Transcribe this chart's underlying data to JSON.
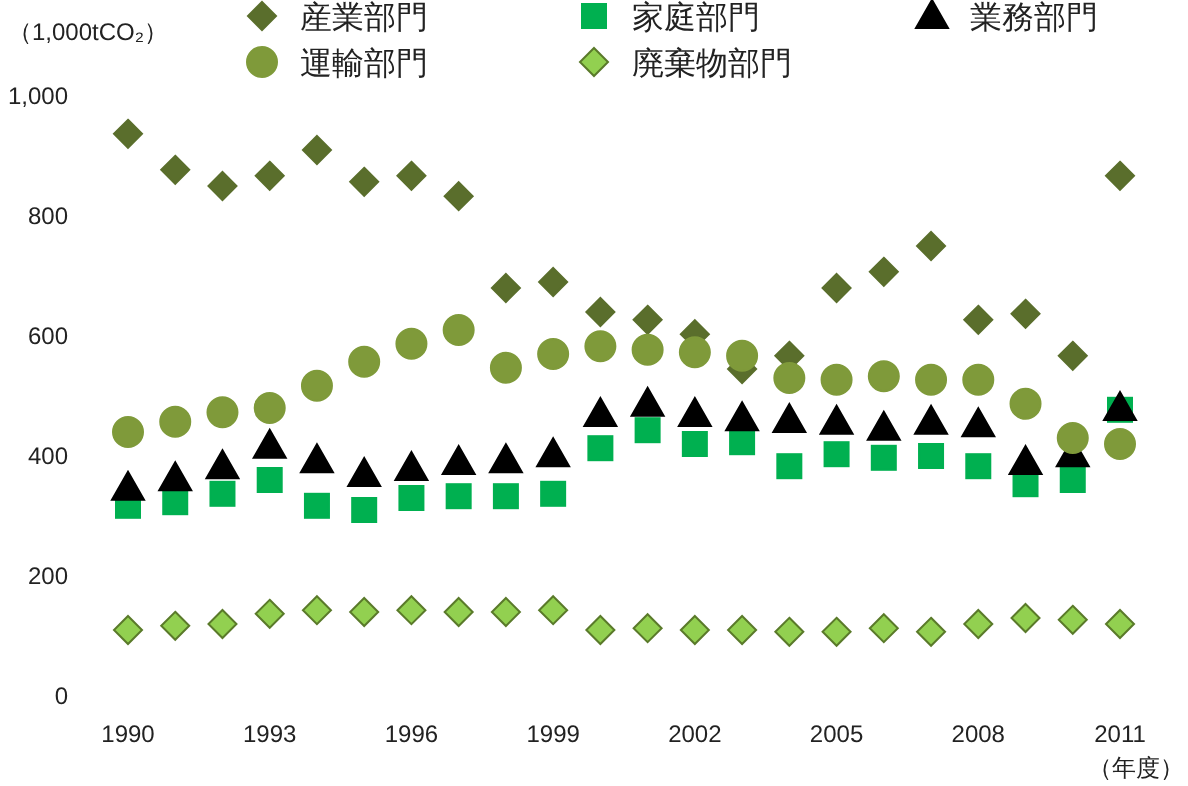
{
  "chart_data": {
    "type": "scatter",
    "ylabel": "（1,000tCO₂）",
    "xlabel": "（年度）",
    "legend": "top",
    "grid": false,
    "x": [
      1990,
      1991,
      1992,
      1993,
      1994,
      1995,
      1996,
      1997,
      1998,
      1999,
      2000,
      2001,
      2002,
      2003,
      2004,
      2005,
      2006,
      2007,
      2008,
      2009,
      2010,
      2011
    ],
    "xlim": [
      1990,
      2011
    ],
    "xticks": [
      1990,
      1993,
      1996,
      1999,
      2002,
      2005,
      2008,
      2011
    ],
    "ylim": [
      0,
      1000
    ],
    "yticks": [
      0,
      200,
      400,
      600,
      800,
      {
        "value": 1000,
        "label": "1,000"
      }
    ],
    "series": [
      {
        "name": "産業部門",
        "color": "#5a6e2c",
        "marker": "diamond",
        "values": [
          937,
          877,
          850,
          867,
          910,
          857,
          867,
          833,
          680,
          690,
          640,
          627,
          603,
          545,
          567,
          680,
          707,
          750,
          627,
          637,
          567,
          867
        ]
      },
      {
        "name": "家庭部門",
        "color": "#00b050",
        "marker": "square",
        "values": [
          317,
          323,
          337,
          360,
          317,
          310,
          330,
          333,
          333,
          337,
          413,
          443,
          420,
          423,
          383,
          403,
          397,
          400,
          383,
          353,
          360,
          477
        ]
      },
      {
        "name": "業務部門",
        "color": "#000000",
        "marker": "triangle",
        "values": [
          347,
          363,
          383,
          417,
          393,
          370,
          380,
          390,
          393,
          403,
          470,
          487,
          470,
          463,
          460,
          457,
          447,
          457,
          453,
          390,
          403,
          480
        ]
      },
      {
        "name": "運輸部門",
        "color": "#7f9a3a",
        "marker": "circle",
        "values": [
          440,
          457,
          473,
          480,
          517,
          557,
          587,
          610,
          547,
          570,
          583,
          577,
          573,
          567,
          530,
          527,
          533,
          527,
          527,
          487,
          430,
          420
        ]
      },
      {
        "name": "廃棄物部門",
        "color": "#92d050",
        "marker": "diamond",
        "values": [
          110,
          117,
          120,
          137,
          143,
          140,
          143,
          140,
          140,
          143,
          110,
          113,
          110,
          110,
          107,
          107,
          113,
          107,
          120,
          130,
          127,
          120
        ]
      }
    ]
  }
}
